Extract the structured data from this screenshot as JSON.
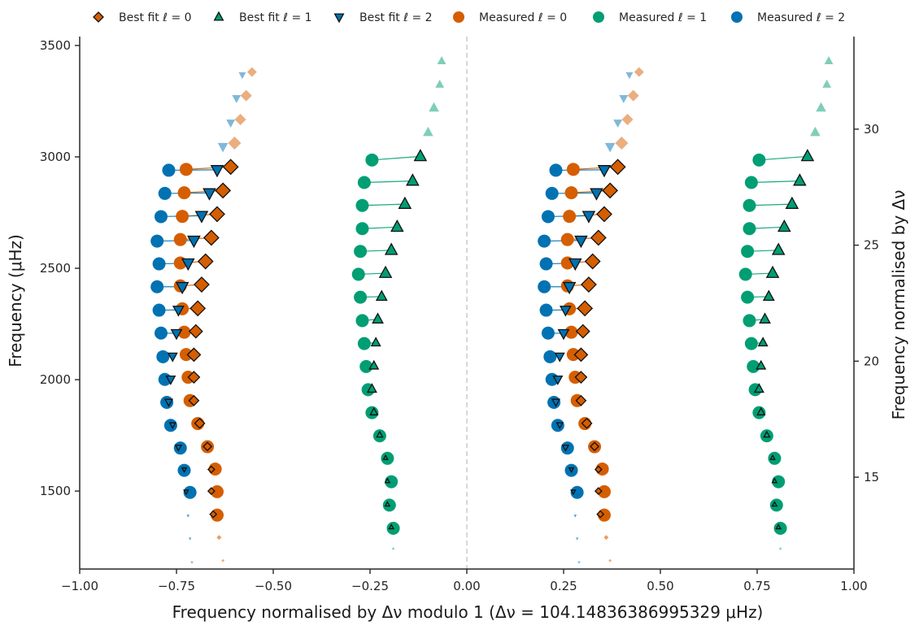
{
  "chart_data": {
    "type": "scatter",
    "title": "",
    "xlabel": "Frequency normalised by Δν modulo 1 (Δν = 104.14836386995329 μHz)",
    "ylabel": "Frequency (μHz)",
    "y2label": "Frequency normalised by Δν",
    "xlim": [
      -1.0,
      1.0
    ],
    "ylim": [
      1150,
      3540
    ],
    "x_ticks": [
      "−1.00",
      "−0.75",
      "−0.50",
      "−0.25",
      "0.00",
      "0.25",
      "0.50",
      "0.75",
      "1.00"
    ],
    "x_tick_values": [
      -1.0,
      -0.75,
      -0.5,
      -0.25,
      0.0,
      0.25,
      0.5,
      0.75,
      1.0
    ],
    "y_ticks": [
      "1500",
      "2000",
      "2500",
      "3000",
      "3500"
    ],
    "y_tick_values": [
      1500,
      2000,
      2500,
      3000,
      3500
    ],
    "y2_ticks": [
      "15",
      "20",
      "25",
      "30"
    ],
    "y2_tick_values": [
      15,
      20,
      25,
      30
    ],
    "vertical_reference_line_x": 0.0,
    "legend_position": "top",
    "grid": false,
    "legend": [
      {
        "label": "Best fit ℓ = 0",
        "marker": "diamond",
        "color": "#d55e00"
      },
      {
        "label": "Best fit ℓ = 1",
        "marker": "triangle-up",
        "color": "#009e73"
      },
      {
        "label": "Best fit ℓ = 2",
        "marker": "triangle-down",
        "color": "#0072b2"
      },
      {
        "label": "Measured ℓ = 0",
        "marker": "circle",
        "color": "#d55e00"
      },
      {
        "label": "Measured ℓ = 1",
        "marker": "circle",
        "color": "#009e73"
      },
      {
        "label": "Measured ℓ = 2",
        "marker": "circle",
        "color": "#0072b2"
      }
    ],
    "series": [
      {
        "name": "Best fit ℓ = 0",
        "color": "#d55e00",
        "marker": "diamond",
        "points": [
          {
            "x": -0.63,
            "y": 1188,
            "size": 2,
            "alpha": 0.5
          },
          {
            "x": -0.64,
            "y": 1292,
            "size": 3,
            "alpha": 0.6
          },
          {
            "x": -0.655,
            "y": 1396,
            "size": 4,
            "alpha": 1.0,
            "measured": true
          },
          {
            "x": -0.66,
            "y": 1500,
            "size": 4,
            "alpha": 1.0,
            "measured": true
          },
          {
            "x": -0.66,
            "y": 1597,
            "size": 4,
            "alpha": 1.0,
            "measured": true
          },
          {
            "x": -0.67,
            "y": 1700,
            "size": 5,
            "alpha": 1.0,
            "measured": true
          },
          {
            "x": -0.69,
            "y": 1804,
            "size": 6,
            "alpha": 1.0,
            "measured": true
          },
          {
            "x": -0.705,
            "y": 1906,
            "size": 6,
            "alpha": 1.0,
            "measured": true
          },
          {
            "x": -0.705,
            "y": 2011,
            "size": 7,
            "alpha": 1.0,
            "measured": true
          },
          {
            "x": -0.705,
            "y": 2112,
            "size": 8,
            "alpha": 1.0,
            "measured": true
          },
          {
            "x": -0.7,
            "y": 2217,
            "size": 8,
            "alpha": 1.0,
            "measured": true
          },
          {
            "x": -0.695,
            "y": 2320,
            "size": 9,
            "alpha": 1.0,
            "measured": true
          },
          {
            "x": -0.685,
            "y": 2427,
            "size": 9,
            "alpha": 1.0,
            "measured": true
          },
          {
            "x": -0.675,
            "y": 2531,
            "size": 9,
            "alpha": 1.0,
            "measured": true
          },
          {
            "x": -0.66,
            "y": 2637,
            "size": 9,
            "alpha": 1.0,
            "measured": true
          },
          {
            "x": -0.645,
            "y": 2743,
            "size": 9,
            "alpha": 1.0,
            "measured": true
          },
          {
            "x": -0.63,
            "y": 2849,
            "size": 9,
            "alpha": 1.0,
            "measured": true
          },
          {
            "x": -0.61,
            "y": 2955,
            "size": 9,
            "alpha": 1.0,
            "measured": true
          },
          {
            "x": -0.6,
            "y": 3062,
            "size": 8,
            "alpha": 0.5
          },
          {
            "x": -0.585,
            "y": 3168,
            "size": 7,
            "alpha": 0.5
          },
          {
            "x": -0.57,
            "y": 3275,
            "size": 7,
            "alpha": 0.5
          },
          {
            "x": -0.555,
            "y": 3381,
            "size": 6,
            "alpha": 0.5
          }
        ]
      },
      {
        "name": "Best fit ℓ = 1",
        "color": "#009e73",
        "marker": "triangle-up",
        "points": [
          {
            "x": -0.19,
            "y": 1242,
            "size": 2,
            "alpha": 0.5
          },
          {
            "x": -0.195,
            "y": 1338,
            "size": 3,
            "alpha": 1.0,
            "measured": true
          },
          {
            "x": -0.205,
            "y": 1440,
            "size": 3,
            "alpha": 1.0,
            "measured": true
          },
          {
            "x": -0.205,
            "y": 1545,
            "size": 3,
            "alpha": 1.0,
            "measured": true
          },
          {
            "x": -0.21,
            "y": 1649,
            "size": 3,
            "alpha": 1.0,
            "measured": true
          },
          {
            "x": -0.225,
            "y": 1752,
            "size": 4,
            "alpha": 1.0,
            "measured": true
          },
          {
            "x": -0.24,
            "y": 1854,
            "size": 5,
            "alpha": 1.0,
            "measured": true
          },
          {
            "x": -0.245,
            "y": 1958,
            "size": 6,
            "alpha": 1.0,
            "measured": true
          },
          {
            "x": -0.24,
            "y": 2062,
            "size": 6,
            "alpha": 1.0,
            "measured": true
          },
          {
            "x": -0.235,
            "y": 2166,
            "size": 6,
            "alpha": 1.0,
            "measured": true
          },
          {
            "x": -0.23,
            "y": 2271,
            "size": 7,
            "alpha": 1.0,
            "measured": true
          },
          {
            "x": -0.22,
            "y": 2373,
            "size": 7,
            "alpha": 1.0,
            "measured": true
          },
          {
            "x": -0.21,
            "y": 2478,
            "size": 8,
            "alpha": 1.0,
            "measured": true
          },
          {
            "x": -0.195,
            "y": 2581,
            "size": 8,
            "alpha": 1.0,
            "measured": true
          },
          {
            "x": -0.18,
            "y": 2685,
            "size": 8,
            "alpha": 1.0,
            "measured": true
          },
          {
            "x": -0.16,
            "y": 2788,
            "size": 8,
            "alpha": 1.0,
            "measured": true
          },
          {
            "x": -0.14,
            "y": 2892,
            "size": 8,
            "alpha": 1.0,
            "measured": true
          },
          {
            "x": -0.12,
            "y": 3002,
            "size": 8,
            "alpha": 1.0,
            "measured": true
          },
          {
            "x": -0.1,
            "y": 3110,
            "size": 7,
            "alpha": 0.5
          },
          {
            "x": -0.085,
            "y": 3220,
            "size": 7,
            "alpha": 0.5
          },
          {
            "x": -0.07,
            "y": 3325,
            "size": 6,
            "alpha": 0.5
          },
          {
            "x": -0.065,
            "y": 3430,
            "size": 6,
            "alpha": 0.5
          }
        ]
      },
      {
        "name": "Best fit ℓ = 2",
        "color": "#0072b2",
        "marker": "triangle-down",
        "points": [
          {
            "x": -0.71,
            "y": 1180,
            "size": 2,
            "alpha": 0.5
          },
          {
            "x": -0.715,
            "y": 1286,
            "size": 2,
            "alpha": 0.6
          },
          {
            "x": -0.72,
            "y": 1389,
            "size": 2,
            "alpha": 0.7
          },
          {
            "x": -0.725,
            "y": 1497,
            "size": 3,
            "alpha": 1.0,
            "measured": true
          },
          {
            "x": -0.73,
            "y": 1597,
            "size": 3,
            "alpha": 1.0,
            "measured": true
          },
          {
            "x": -0.745,
            "y": 1696,
            "size": 4,
            "alpha": 1.0,
            "measured": true
          },
          {
            "x": -0.76,
            "y": 1797,
            "size": 4,
            "alpha": 1.0,
            "measured": true
          },
          {
            "x": -0.77,
            "y": 1900,
            "size": 5,
            "alpha": 1.0,
            "measured": true
          },
          {
            "x": -0.765,
            "y": 2002,
            "size": 6,
            "alpha": 1.0,
            "measured": true
          },
          {
            "x": -0.76,
            "y": 2105,
            "size": 6,
            "alpha": 1.0,
            "measured": true
          },
          {
            "x": -0.75,
            "y": 2208,
            "size": 7,
            "alpha": 1.0,
            "measured": true
          },
          {
            "x": -0.745,
            "y": 2313,
            "size": 7,
            "alpha": 1.0,
            "measured": true
          },
          {
            "x": -0.735,
            "y": 2417,
            "size": 8,
            "alpha": 1.0,
            "measured": true
          },
          {
            "x": -0.72,
            "y": 2523,
            "size": 8,
            "alpha": 1.0,
            "measured": true
          },
          {
            "x": -0.705,
            "y": 2625,
            "size": 8,
            "alpha": 1.0,
            "measured": true
          },
          {
            "x": -0.685,
            "y": 2736,
            "size": 8,
            "alpha": 1.0,
            "measured": true
          },
          {
            "x": -0.665,
            "y": 2838,
            "size": 8,
            "alpha": 1.0,
            "measured": true
          },
          {
            "x": -0.645,
            "y": 2942,
            "size": 8,
            "alpha": 1.0,
            "measured": true
          },
          {
            "x": -0.63,
            "y": 3046,
            "size": 7,
            "alpha": 0.5
          },
          {
            "x": -0.61,
            "y": 3153,
            "size": 6,
            "alpha": 0.5
          },
          {
            "x": -0.595,
            "y": 3263,
            "size": 6,
            "alpha": 0.5
          },
          {
            "x": -0.58,
            "y": 3368,
            "size": 5,
            "alpha": 0.5
          }
        ]
      },
      {
        "name": "Measured ℓ = 0",
        "color": "#d55e00",
        "marker": "circle",
        "points": [
          {
            "x": -0.645,
            "y": 1392
          },
          {
            "x": -0.645,
            "y": 1497
          },
          {
            "x": -0.65,
            "y": 1599
          },
          {
            "x": -0.67,
            "y": 1699
          },
          {
            "x": -0.695,
            "y": 1803
          },
          {
            "x": -0.715,
            "y": 1906
          },
          {
            "x": -0.72,
            "y": 2011
          },
          {
            "x": -0.725,
            "y": 2113
          },
          {
            "x": -0.73,
            "y": 2213
          },
          {
            "x": -0.735,
            "y": 2318
          },
          {
            "x": -0.74,
            "y": 2421
          },
          {
            "x": -0.74,
            "y": 2524
          },
          {
            "x": -0.74,
            "y": 2629
          },
          {
            "x": -0.735,
            "y": 2733
          },
          {
            "x": -0.73,
            "y": 2839
          },
          {
            "x": -0.725,
            "y": 2944
          }
        ]
      },
      {
        "name": "Measured ℓ = 1",
        "color": "#009e73",
        "marker": "circle",
        "points": [
          {
            "x": -0.19,
            "y": 1333
          },
          {
            "x": -0.2,
            "y": 1437
          },
          {
            "x": -0.195,
            "y": 1542
          },
          {
            "x": -0.205,
            "y": 1647
          },
          {
            "x": -0.225,
            "y": 1748
          },
          {
            "x": -0.245,
            "y": 1852
          },
          {
            "x": -0.255,
            "y": 1955
          },
          {
            "x": -0.26,
            "y": 2059
          },
          {
            "x": -0.265,
            "y": 2162
          },
          {
            "x": -0.27,
            "y": 2265
          },
          {
            "x": -0.275,
            "y": 2370
          },
          {
            "x": -0.28,
            "y": 2473
          },
          {
            "x": -0.275,
            "y": 2576
          },
          {
            "x": -0.27,
            "y": 2678
          },
          {
            "x": -0.27,
            "y": 2782
          },
          {
            "x": -0.265,
            "y": 2885
          },
          {
            "x": -0.245,
            "y": 2986
          }
        ]
      },
      {
        "name": "Measured ℓ = 2",
        "color": "#0072b2",
        "marker": "circle",
        "points": [
          {
            "x": -0.715,
            "y": 1494
          },
          {
            "x": -0.73,
            "y": 1593
          },
          {
            "x": -0.74,
            "y": 1693
          },
          {
            "x": -0.765,
            "y": 1795
          },
          {
            "x": -0.775,
            "y": 1898
          },
          {
            "x": -0.78,
            "y": 2001
          },
          {
            "x": -0.785,
            "y": 2103
          },
          {
            "x": -0.79,
            "y": 2209
          },
          {
            "x": -0.795,
            "y": 2312
          },
          {
            "x": -0.8,
            "y": 2417
          },
          {
            "x": -0.795,
            "y": 2520
          },
          {
            "x": -0.8,
            "y": 2622
          },
          {
            "x": -0.79,
            "y": 2732
          },
          {
            "x": -0.78,
            "y": 2836
          },
          {
            "x": -0.77,
            "y": 2940
          }
        ]
      }
    ]
  }
}
